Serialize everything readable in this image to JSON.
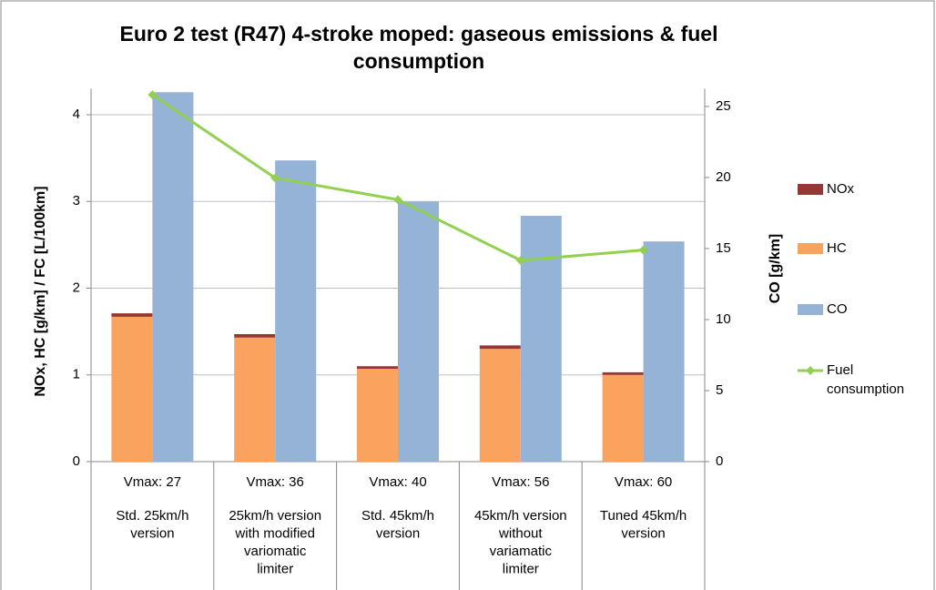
{
  "chart_data": {
    "type": "bar",
    "title": "Euro 2 test (R47) 4-stroke moped: gaseous emissions & fuel consumption",
    "y_label": "NOx, HC [g/km] / FC [L/100km]",
    "y2_label": "CO [g/km]",
    "categories": [
      "Vmax: 27",
      "Vmax: 36",
      "Vmax: 40",
      "Vmax: 56",
      "Vmax: 60"
    ],
    "category_descriptions": [
      [
        "Std. 25km/h",
        "version"
      ],
      [
        "25km/h version",
        "with modified",
        "variomatic",
        "limiter"
      ],
      [
        "Std. 45km/h",
        "version"
      ],
      [
        "45km/h version",
        "without",
        "variamatic",
        "limiter"
      ],
      [
        "Tuned 45km/h",
        "version"
      ]
    ],
    "series": [
      {
        "name": "NOx",
        "type": "bar",
        "axis": "y",
        "color": "#953735",
        "values": [
          0.04,
          0.04,
          0.03,
          0.04,
          0.03
        ]
      },
      {
        "name": "HC",
        "type": "bar",
        "axis": "y",
        "color": "#f9a35f",
        "values": [
          1.67,
          1.43,
          1.07,
          1.3,
          1.0
        ]
      },
      {
        "name": "CO",
        "type": "bar",
        "axis": "y2",
        "color": "#95b3d7",
        "values": [
          26.0,
          21.2,
          18.3,
          17.3,
          15.5
        ]
      },
      {
        "name": "Fuel consumption",
        "type": "line",
        "axis": "y",
        "color": "#92d050",
        "values": [
          4.23,
          3.27,
          3.02,
          2.32,
          2.44
        ]
      }
    ],
    "ylim": [
      0,
      4.3
    ],
    "yticks": [
      0,
      1,
      2,
      3,
      4
    ],
    "y2lim": [
      0,
      26.25
    ],
    "y2ticks": [
      0,
      5,
      10,
      15,
      20,
      25
    ],
    "grid": true,
    "legend": "right"
  }
}
